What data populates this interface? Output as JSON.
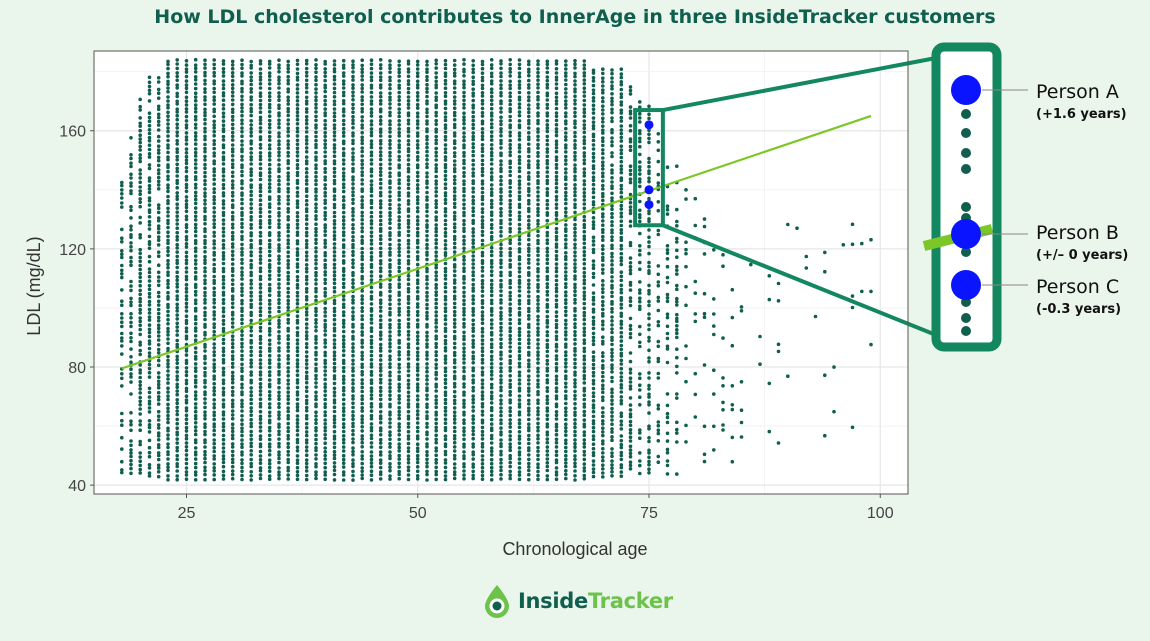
{
  "title": "How LDL cholesterol contributes to InnerAge in three InsideTracker customers",
  "colors": {
    "background": "#eaf5ec",
    "points": "#0f5e4e",
    "trend": "#7cc728",
    "highlight": "#0a14ff",
    "callout_frame": "#13875f"
  },
  "chart_data": {
    "type": "scatter",
    "title": "How LDL cholesterol contributes to InnerAge in three InsideTracker customers",
    "xlabel": "Chronological age",
    "ylabel": "LDL (mg/dL)",
    "xlim": [
      15,
      103
    ],
    "ylim": [
      37,
      187
    ],
    "xticks": [
      25,
      50,
      75,
      100
    ],
    "yticks": [
      40,
      80,
      120,
      160
    ],
    "grid": true,
    "density": {
      "x_range": [
        18,
        99
      ],
      "y_range": [
        41,
        184
      ],
      "description_points": "dense vertical columns of observations at integer ages"
    },
    "trend_line": {
      "x": [
        18,
        99
      ],
      "y": [
        79.5,
        165
      ]
    },
    "highlighted_points": [
      {
        "name": "Person A",
        "x": 75,
        "y": 162,
        "delta": "(+1.6 years)"
      },
      {
        "name": "Person B",
        "x": 75,
        "y": 140,
        "delta": "(+/– 0 years)"
      },
      {
        "name": "Person C",
        "x": 75,
        "y": 135,
        "delta": "(-0.3 years)"
      }
    ],
    "zoom_box": {
      "x": [
        73.5,
        76.5
      ],
      "y": [
        128,
        167
      ]
    }
  },
  "callout": {
    "persons": [
      {
        "name": "Person A",
        "delta": "(+1.6 years)"
      },
      {
        "name": "Person B",
        "delta": "(+/– 0 years)"
      },
      {
        "name": "Person C",
        "delta": "(-0.3 years)"
      }
    ]
  },
  "logo": {
    "text_inside": "Inside",
    "text_tracker": "Tracker",
    "icon": "droplet-logo-icon"
  }
}
